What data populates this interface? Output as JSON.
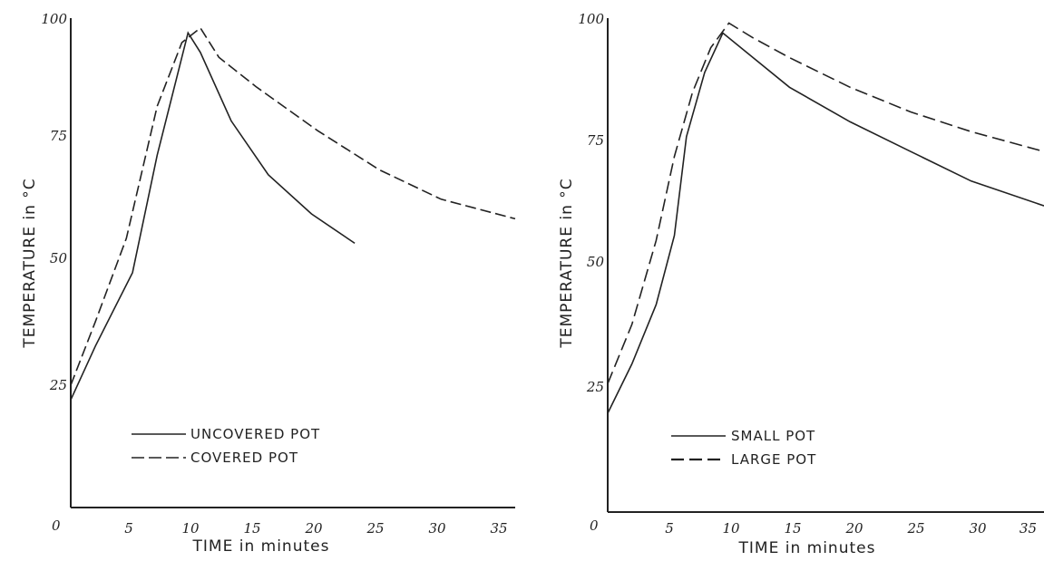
{
  "chart_data": [
    {
      "type": "line",
      "xlabel": "TIME in minutes",
      "ylabel": "TEMPERATURE in °C",
      "xlim": [
        0,
        36
      ],
      "ylim": [
        0,
        100
      ],
      "x_ticks": [
        "0",
        "5",
        "10",
        "15",
        "20",
        "25",
        "30",
        "35"
      ],
      "y_ticks": [
        "25",
        "50",
        "75",
        "100"
      ],
      "legend_position": "lower-center",
      "series": [
        {
          "name": "UNCOVERED POT",
          "dash": "solid",
          "points": [
            [
              0,
              22
            ],
            [
              2,
              33
            ],
            [
              5,
              48
            ],
            [
              7,
              72
            ],
            [
              9.5,
              97
            ],
            [
              10.5,
              93
            ],
            [
              13,
              79
            ],
            [
              16,
              68
            ],
            [
              19.5,
              60
            ],
            [
              23,
              54
            ]
          ]
        },
        {
          "name": "COVERED POT",
          "dash": "dashed",
          "points": [
            [
              0,
              25
            ],
            [
              2,
              38
            ],
            [
              4.5,
              55
            ],
            [
              7,
              82
            ],
            [
              9,
              95
            ],
            [
              10.5,
              98
            ],
            [
              12,
              92
            ],
            [
              15,
              86
            ],
            [
              20,
              77
            ],
            [
              25,
              69
            ],
            [
              30,
              63
            ],
            [
              36,
              59
            ]
          ]
        }
      ]
    },
    {
      "type": "line",
      "xlabel": "TIME in minutes",
      "ylabel": "TEMPERATURE in °C",
      "xlim": [
        0,
        36
      ],
      "ylim": [
        0,
        100
      ],
      "x_ticks": [
        "0",
        "5",
        "10",
        "15",
        "20",
        "25",
        "30",
        "35"
      ],
      "y_ticks": [
        "25",
        "50",
        "75",
        "100"
      ],
      "legend_position": "lower-center",
      "series": [
        {
          "name": "SMALL POT",
          "dash": "solid",
          "points": [
            [
              0,
              20
            ],
            [
              2,
              30
            ],
            [
              4,
              42
            ],
            [
              5.5,
              56
            ],
            [
              6.5,
              76
            ],
            [
              8,
              89
            ],
            [
              9.5,
              97
            ],
            [
              12,
              92
            ],
            [
              15,
              86
            ],
            [
              20,
              79
            ],
            [
              25,
              73
            ],
            [
              30,
              67
            ],
            [
              36,
              62
            ]
          ]
        },
        {
          "name": "LARGE POT",
          "dash": "dashed",
          "points": [
            [
              0,
              26
            ],
            [
              2,
              38
            ],
            [
              4,
              55
            ],
            [
              5.5,
              72
            ],
            [
              7,
              85
            ],
            [
              8.5,
              94
            ],
            [
              10,
              99
            ],
            [
              12,
              96
            ],
            [
              15,
              92
            ],
            [
              20,
              86
            ],
            [
              25,
              81
            ],
            [
              30,
              77
            ],
            [
              36,
              73
            ]
          ]
        }
      ]
    }
  ]
}
